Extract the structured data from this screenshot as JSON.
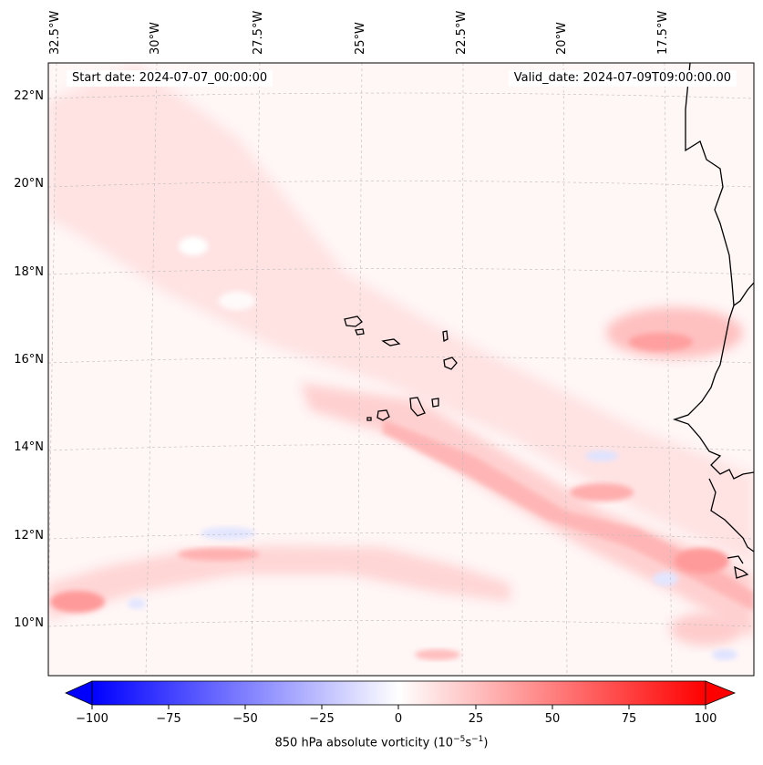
{
  "map": {
    "start_date": "Start date: 2024-07-07_00:00:00",
    "valid_date": "Valid_date: 2024-07-09T09:00:00.00",
    "lon_labels": [
      "32.5°W",
      "30°W",
      "27.5°W",
      "25°W",
      "22.5°W",
      "20°W",
      "17.5°W"
    ],
    "lat_labels": [
      "22°N",
      "20°N",
      "18°N",
      "16°N",
      "14°N",
      "12°N",
      "10°N"
    ],
    "colorbar": {
      "ticks": [
        "−100",
        "−75",
        "−50",
        "−25",
        "0",
        "25",
        "50",
        "75",
        "100"
      ],
      "label_main": "850 hPa absolute vorticity (10",
      "label_exp1": "−5",
      "label_mid": "s",
      "label_exp2": "−1",
      "label_end": ")"
    },
    "colors": {
      "negative": "#0000ff",
      "neutral": "#ffffff",
      "positive": "#ff0000",
      "coastline": "#000000"
    }
  }
}
